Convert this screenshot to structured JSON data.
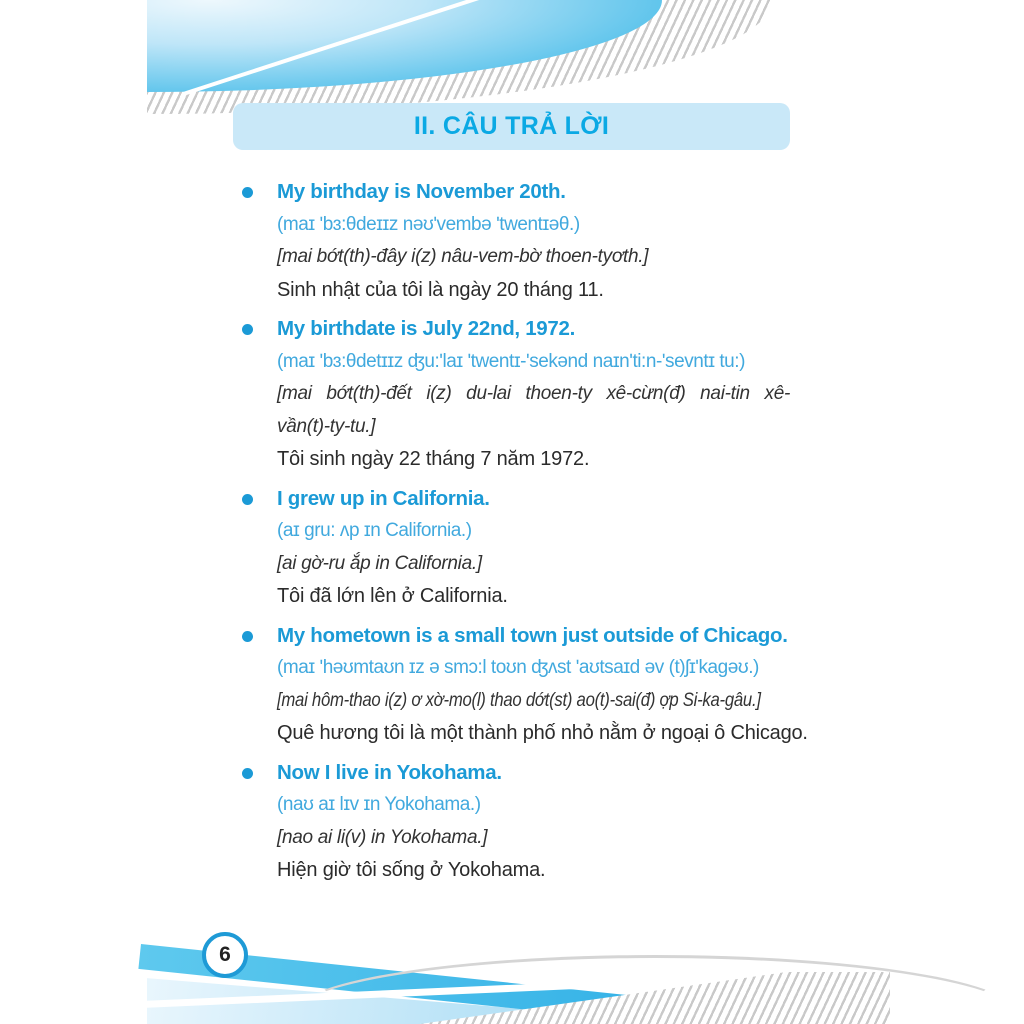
{
  "page": {
    "title": "II. CÂU TRẢ LỜI",
    "page_number": "6",
    "items": [
      {
        "en": "My birthday is November 20th.",
        "ipa": "(maɪ ʹbɜ:θdeɪɪz nəʊʹvembə ʹtwentɪəθ.)",
        "viet_phonetic": [
          "[mai bớt(th)-đây i(z) nâu-vem-bờ thoen-tyơth.]"
        ],
        "translation": "Sinh nhật của tôi là ngày 20 tháng 11."
      },
      {
        "en": "My birthdate is July 22nd, 1972.",
        "ipa": "(maɪ ʹbɜ:θdetɪɪz ʤu:ʹlaɪ ʹtwentɪ-ʹsekənd naɪnʹti:n-ʹsevntɪ tu:)",
        "viet_phonetic": [
          "[mai bớt(th)-đết i(z) du-lai thoen-ty xê-cừn(đ) nai-tin xê-",
          "vần(t)-ty-tu.]"
        ],
        "translation": "Tôi sinh ngày 22 tháng 7 năm 1972."
      },
      {
        "en": "I grew up in California.",
        "ipa": "(aɪ gru: ʌp ɪn California.)",
        "viet_phonetic": [
          "[ai gờ-ru ắp in California.]"
        ],
        "translation": "Tôi đã lớn lên ở California."
      },
      {
        "en": "My hometown is a small town just outside of Chicago.",
        "ipa": "(maɪ ʹhəʊmtaʊn ɪz ə smɔ:l toʊn ʤʌst ʹaʊtsaɪd əv (t)ʃɪʹkagəʊ.)",
        "viet_phonetic": [
          "[mai hôm-thao i(z) ơ xờ-mo(l) thao dớt(st) ao(t)-sai(đ) ợp Si-ka-gâu.]"
        ],
        "translation": "Quê hương tôi là một thành phố nhỏ nằm ở ngoại ô Chicago."
      },
      {
        "en": "Now I live in Yokohama.",
        "ipa": "(naʊ aɪ lɪv ɪn Yokohama.)",
        "viet_phonetic": [
          "[nao ai li(v) in Yokohama.]"
        ],
        "translation": "Hiện giờ tôi sống ở Yokohama."
      }
    ]
  },
  "colors": {
    "heading_blue": "#1b9ad6",
    "ipa_blue": "#41a9de",
    "title_text": "#0ba9e4",
    "title_bg": "#c9e8f8",
    "body_text": "#2b2b2b",
    "hatch_gray": "#c9c9c9"
  }
}
